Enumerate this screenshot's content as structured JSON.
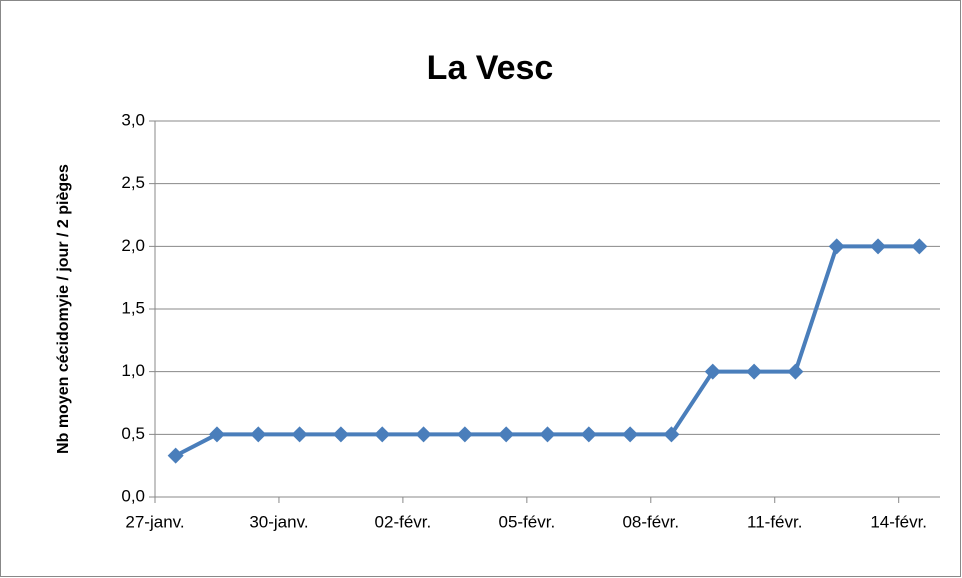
{
  "chart_data": {
    "type": "line",
    "title": "La Vesc",
    "y_label": "Nb moyen cécidomyie  / jour / 2 pièges",
    "categories": [
      "27-janv.",
      null,
      null,
      "30-janv.",
      null,
      null,
      "02-févr.",
      null,
      null,
      "05-févr.",
      null,
      null,
      "08-févr.",
      null,
      null,
      "11-févr.",
      null,
      null,
      "14-févr."
    ],
    "series": [
      {
        "name": "La Vesc",
        "color": "#4a7ebb",
        "values": [
          0.33,
          0.5,
          0.5,
          0.5,
          0.5,
          0.5,
          0.5,
          0.5,
          0.5,
          0.5,
          0.5,
          0.5,
          0.5,
          1.0,
          1.0,
          1.0,
          2.0,
          2.0,
          2.0
        ]
      }
    ],
    "ylim": [
      0,
      3
    ],
    "yticks": [
      {
        "value": 0,
        "label": "0,0"
      },
      {
        "value": 0.5,
        "label": "0,5"
      },
      {
        "value": 1,
        "label": "1,0"
      },
      {
        "value": 1.5,
        "label": "1,5"
      },
      {
        "value": 2,
        "label": "2,0"
      },
      {
        "value": 2.5,
        "label": "2,5"
      },
      {
        "value": 3,
        "label": "3,0"
      }
    ],
    "grid": true,
    "legend": false
  }
}
